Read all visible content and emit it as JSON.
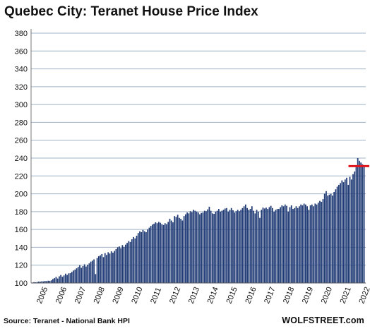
{
  "chart_data": {
    "type": "bar",
    "title": "Quebec City: Teranet House Price Index",
    "source": "Source: Teranet - National Bank HPI",
    "brand": "WOLFSTREET.com",
    "xlabel": "",
    "ylabel": "",
    "ylim": [
      100,
      380
    ],
    "yticks": [
      100,
      120,
      140,
      160,
      180,
      200,
      220,
      240,
      260,
      280,
      300,
      320,
      340,
      360,
      380
    ],
    "xtick_labels": [
      "2005",
      "2006",
      "2007",
      "2008",
      "2009",
      "2010",
      "2011",
      "2012",
      "2013",
      "2014",
      "2015",
      "2016",
      "2017",
      "2018",
      "2019",
      "2020",
      "2021",
      "2022"
    ],
    "grid": true,
    "bar_color": "#1f3a75",
    "reference_line": {
      "value": 231,
      "color": "#e0151e"
    },
    "start_month": "2005-01",
    "values": [
      100.5,
      101.0,
      100.8,
      101.2,
      101.6,
      101.4,
      102.0,
      101.8,
      102.3,
      102.1,
      102.6,
      102.4,
      103.0,
      104.5,
      105.5,
      106.8,
      105.0,
      107.5,
      109.0,
      107.0,
      108.5,
      110.5,
      109.0,
      110.8,
      111.0,
      112.5,
      114.0,
      115.0,
      116.5,
      118.0,
      120.0,
      117.0,
      119.0,
      121.0,
      118.5,
      120.5,
      122.0,
      124.0,
      125.0,
      126.5,
      110.0,
      128.0,
      130.0,
      131.0,
      132.5,
      129.0,
      133.5,
      131.5,
      134.5,
      133.0,
      135.5,
      134.0,
      136.0,
      138.0,
      140.0,
      141.0,
      139.0,
      142.5,
      140.5,
      143.0,
      145.0,
      147.0,
      146.0,
      149.0,
      151.5,
      150.0,
      153.0,
      156.0,
      158.0,
      157.0,
      159.5,
      158.0,
      157.0,
      160.0,
      162.0,
      164.0,
      165.5,
      166.5,
      168.0,
      167.0,
      168.5,
      167.5,
      166.0,
      165.0,
      167.0,
      166.0,
      168.5,
      172.0,
      170.0,
      168.0,
      175.0,
      174.0,
      176.5,
      173.0,
      172.0,
      170.0,
      175.0,
      177.0,
      179.0,
      178.0,
      180.5,
      179.5,
      182.0,
      181.0,
      180.0,
      179.0,
      177.0,
      178.5,
      179.0,
      181.0,
      180.5,
      182.5,
      185.5,
      181.0,
      178.0,
      177.5,
      180.0,
      181.0,
      183.0,
      180.0,
      181.0,
      182.0,
      183.5,
      184.0,
      180.0,
      182.0,
      184.0,
      181.5,
      179.0,
      180.5,
      182.0,
      180.5,
      182.0,
      184.0,
      186.0,
      188.0,
      184.0,
      182.0,
      183.0,
      186.0,
      181.0,
      178.0,
      182.0,
      180.0,
      173.0,
      182.0,
      184.5,
      183.5,
      184.5,
      183.0,
      185.0,
      186.5,
      184.0,
      180.0,
      182.0,
      183.0,
      183.0,
      185.0,
      187.0,
      186.0,
      188.0,
      186.5,
      180.0,
      185.0,
      187.0,
      183.0,
      184.0,
      186.0,
      184.0,
      186.0,
      188.0,
      187.0,
      189.0,
      188.0,
      186.0,
      182.0,
      187.0,
      188.0,
      186.0,
      189.0,
      188.0,
      190.0,
      192.0,
      191.0,
      194.0,
      200.0,
      203.0,
      198.0,
      199.0,
      200.0,
      198.0,
      202.0,
      205.0,
      208.0,
      210.0,
      212.0,
      215.0,
      213.0,
      216.0,
      218.0,
      210.0,
      219.0,
      216.0,
      222.0,
      225.0,
      232.0,
      240.0,
      237.0,
      235.0,
      233.0,
      230.0
    ]
  }
}
